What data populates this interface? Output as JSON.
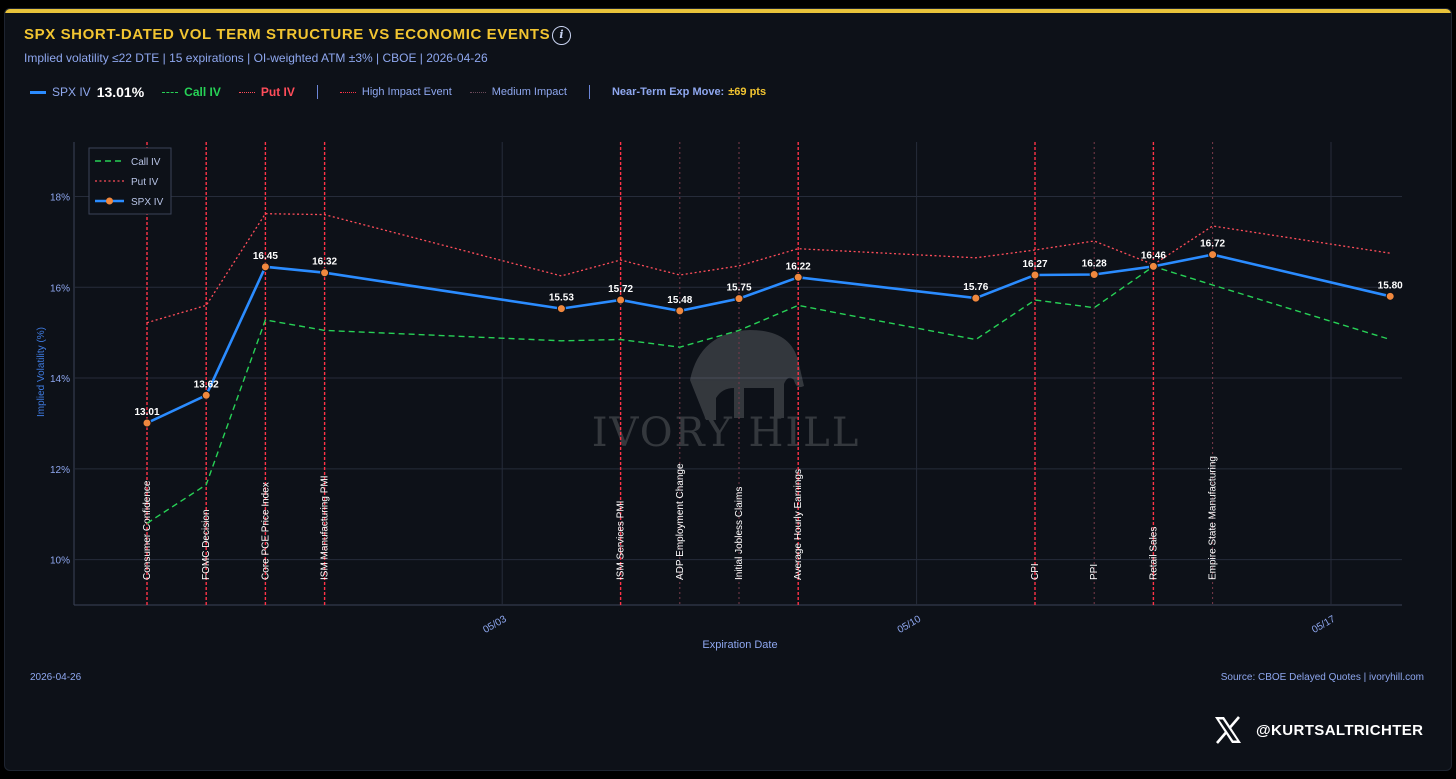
{
  "header": {
    "title": "SPX SHORT-DATED VOL TERM STRUCTURE VS ECONOMIC EVENTS",
    "info_icon": "info-icon",
    "subtitle": "Implied volatility ≤22 DTE | 15 expirations | OI-weighted ATM ±3% | CBOE | 2026-04-26"
  },
  "top_legend": {
    "spx_label": "SPX IV",
    "spx_value": "13.01%",
    "call_label": "Call IV",
    "put_label": "Put IV",
    "high_impact_label": "High Impact Event",
    "medium_impact_label": "Medium Impact",
    "exp_move_label": "Near-Term Exp Move:",
    "exp_move_value": "±69 pts"
  },
  "colors": {
    "spx": "#2b8cff",
    "call": "#27d156",
    "put": "#ff4d5a",
    "marker": "#f0883e",
    "high_event": "#ff3347",
    "medium_event": "#c24a5a",
    "accent": "#f2c531",
    "axis_text": "#8ea7ef"
  },
  "chart_data": {
    "type": "line",
    "title": "SPX SHORT-DATED VOL TERM STRUCTURE VS ECONOMIC EVENTS",
    "xlabel": "Expiration Date",
    "ylabel": "Implied Volatility (%)",
    "x_range": [
      "2026-04-27",
      "2026-05-18"
    ],
    "ylim": [
      9,
      19.2
    ],
    "yticks": [
      10,
      12,
      14,
      16,
      18
    ],
    "ytick_labels": [
      "10%",
      "12%",
      "14%",
      "16%",
      "18%"
    ],
    "xticks": [
      "2026-05-03",
      "2026-05-10",
      "2026-05-17"
    ],
    "xtick_labels": [
      "05/03",
      "05/10",
      "05/17"
    ],
    "grid": true,
    "legend_position": "top-left",
    "legend": [
      "Call IV",
      "Put IV",
      "SPX IV"
    ],
    "dates": [
      "2026-04-27",
      "2026-04-28",
      "2026-04-29",
      "2026-04-30",
      "2026-05-04",
      "2026-05-05",
      "2026-05-06",
      "2026-05-07",
      "2026-05-08",
      "2026-05-11",
      "2026-05-12",
      "2026-05-13",
      "2026-05-14",
      "2026-05-15",
      "2026-05-18"
    ],
    "series": [
      {
        "name": "SPX IV",
        "style": "solid",
        "markers": true,
        "labels": [
          "13.01",
          "13.62",
          "16.45",
          "16.32",
          "15.53",
          "15.72",
          "15.48",
          "15.75",
          "16.22",
          "15.76",
          "16.27",
          "16.28",
          "16.46",
          "16.72",
          "15.80"
        ],
        "values": [
          13.01,
          13.62,
          16.45,
          16.32,
          15.53,
          15.72,
          15.48,
          15.75,
          16.22,
          15.76,
          16.27,
          16.28,
          16.46,
          16.72,
          15.8
        ]
      },
      {
        "name": "Call IV",
        "style": "dashed",
        "values": [
          10.8,
          11.65,
          15.28,
          15.05,
          14.82,
          14.85,
          14.68,
          15.05,
          15.6,
          14.85,
          15.72,
          15.55,
          16.46,
          16.05,
          14.85
        ]
      },
      {
        "name": "Put IV",
        "style": "dotted",
        "values": [
          15.22,
          15.6,
          17.62,
          17.6,
          16.25,
          16.6,
          16.27,
          16.47,
          16.85,
          16.65,
          16.82,
          17.02,
          16.5,
          17.35,
          16.75
        ]
      }
    ],
    "events": [
      {
        "date": "2026-04-27",
        "label": "Consumer Confidence",
        "impact": "high"
      },
      {
        "date": "2026-04-28",
        "label": "FOMC Decision",
        "impact": "high"
      },
      {
        "date": "2026-04-29",
        "label": "Core PCE Price Index",
        "impact": "high"
      },
      {
        "date": "2026-04-30",
        "label": "ISM Manufacturing PMI",
        "impact": "high"
      },
      {
        "date": "2026-05-05",
        "label": "ISM Services PMI",
        "impact": "high"
      },
      {
        "date": "2026-05-06",
        "label": "ADP Employment Change",
        "impact": "medium"
      },
      {
        "date": "2026-05-07",
        "label": "Initial Jobless Claims",
        "impact": "medium"
      },
      {
        "date": "2026-05-08",
        "label": "Average Hourly Earnings",
        "impact": "high"
      },
      {
        "date": "2026-05-12",
        "label": "CPI",
        "impact": "high"
      },
      {
        "date": "2026-05-13",
        "label": "PPI",
        "impact": "medium"
      },
      {
        "date": "2026-05-14",
        "label": "Retail Sales",
        "impact": "high"
      },
      {
        "date": "2026-05-15",
        "label": "Empire State Manufacturing",
        "impact": "medium"
      }
    ],
    "watermark": "IVORY HILL"
  },
  "footer": {
    "date": "2026-04-26",
    "source": "Source: CBOE Delayed Quotes | ivoryhill.com",
    "handle_icon": "x-logo-icon",
    "handle": "@KURTSALTRICHTER"
  }
}
